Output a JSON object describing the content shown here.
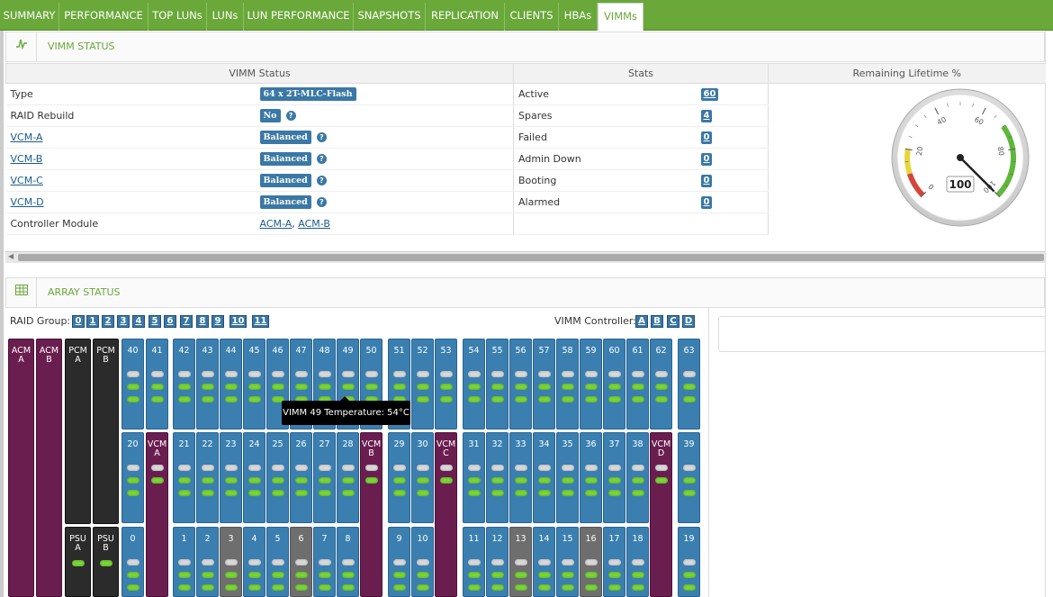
{
  "tabs": [
    "SUMMARY",
    "PERFORMANCE",
    "TOP LUNs",
    "LUNs",
    "LUN PERFORMANCE",
    "SNAPSHOTS",
    "REPLICATION",
    "CLIENTS",
    "HBAs",
    "VIMMs"
  ],
  "vimm_section": {
    "title": "VIMM STATUS",
    "headers": {
      "status": "VIMM Status",
      "stats": "Stats",
      "lifetime": "Remaining Lifetime %"
    },
    "rows": [
      {
        "label": "Type",
        "value": "64 x 2T-MLC-Flash",
        "link": false,
        "help": false
      },
      {
        "label": "RAID Rebuild",
        "value": "No",
        "link": false,
        "help": true
      },
      {
        "label": "VCM-A",
        "value": "Balanced",
        "link": true,
        "help": true
      },
      {
        "label": "VCM-B",
        "value": "Balanced",
        "link": true,
        "help": true
      },
      {
        "label": "VCM-C",
        "value": "Balanced",
        "link": true,
        "help": true
      },
      {
        "label": "VCM-D",
        "value": "Balanced",
        "link": true,
        "help": true
      }
    ],
    "controller": {
      "label": "Controller Module",
      "acm_a": "ACM-A",
      "sep": ",",
      "acm_b": "ACM-B"
    },
    "stats": [
      {
        "label": "Active",
        "value": "60"
      },
      {
        "label": "Spares",
        "value": "4"
      },
      {
        "label": "Failed",
        "value": "0"
      },
      {
        "label": "Admin Down",
        "value": "0"
      },
      {
        "label": "Booting",
        "value": "0"
      },
      {
        "label": "Alarmed",
        "value": "0"
      }
    ],
    "gauge": {
      "value": 100,
      "ticks": [
        "0",
        "20",
        "40",
        "60",
        "80",
        "100"
      ]
    }
  },
  "array_section": {
    "title": "ARRAY STATUS",
    "raid_group_label": "RAID Group:",
    "raid_groups": [
      "0",
      "1",
      "2",
      "3",
      "4",
      "5",
      "6",
      "7",
      "8",
      "9",
      "10",
      "11"
    ],
    "vimm_controller_label": "VIMM Controller:",
    "controllers": [
      "A",
      "B",
      "C",
      "D"
    ],
    "tooltip": "VIMM 49 Temperature: 54°C",
    "slots": {
      "acm_a": "ACM\nA",
      "acm_b": "ACM\nB",
      "pcm_a": "PCM\nA",
      "pcm_b": "PCM\nB",
      "psu_a": "PSU\nA",
      "psu_b": "PSU\nB",
      "vcm_a": "VCM\nA",
      "vcm_b": "VCM\nB",
      "vcm_c": "VCM\nC",
      "vcm_d": "VCM\nD",
      "row1": [
        "40",
        "41",
        "42",
        "43",
        "44",
        "45",
        "46",
        "47",
        "48",
        "49",
        "50",
        "51",
        "52",
        "53",
        "54",
        "55",
        "56",
        "57",
        "58",
        "59",
        "60",
        "61",
        "62",
        "63"
      ],
      "row2": [
        "20",
        "21",
        "22",
        "23",
        "24",
        "25",
        "26",
        "27",
        "28",
        "29",
        "30",
        "31",
        "32",
        "33",
        "34",
        "35",
        "36",
        "37",
        "38",
        "39"
      ],
      "row3": [
        "0",
        "1",
        "2",
        "3",
        "4",
        "5",
        "6",
        "7",
        "8",
        "9",
        "10",
        "11",
        "12",
        "13",
        "14",
        "15",
        "16",
        "17",
        "18",
        "19"
      ]
    },
    "gray_slots": [
      "3",
      "6",
      "13",
      "16"
    ]
  },
  "colors": {
    "tab_bar": "#6aa83a",
    "accent": "#3a78a5",
    "vimm_slot": "#3a7fb0",
    "vcm_slot": "#6a1e50",
    "led_green": "#7ad33a"
  }
}
